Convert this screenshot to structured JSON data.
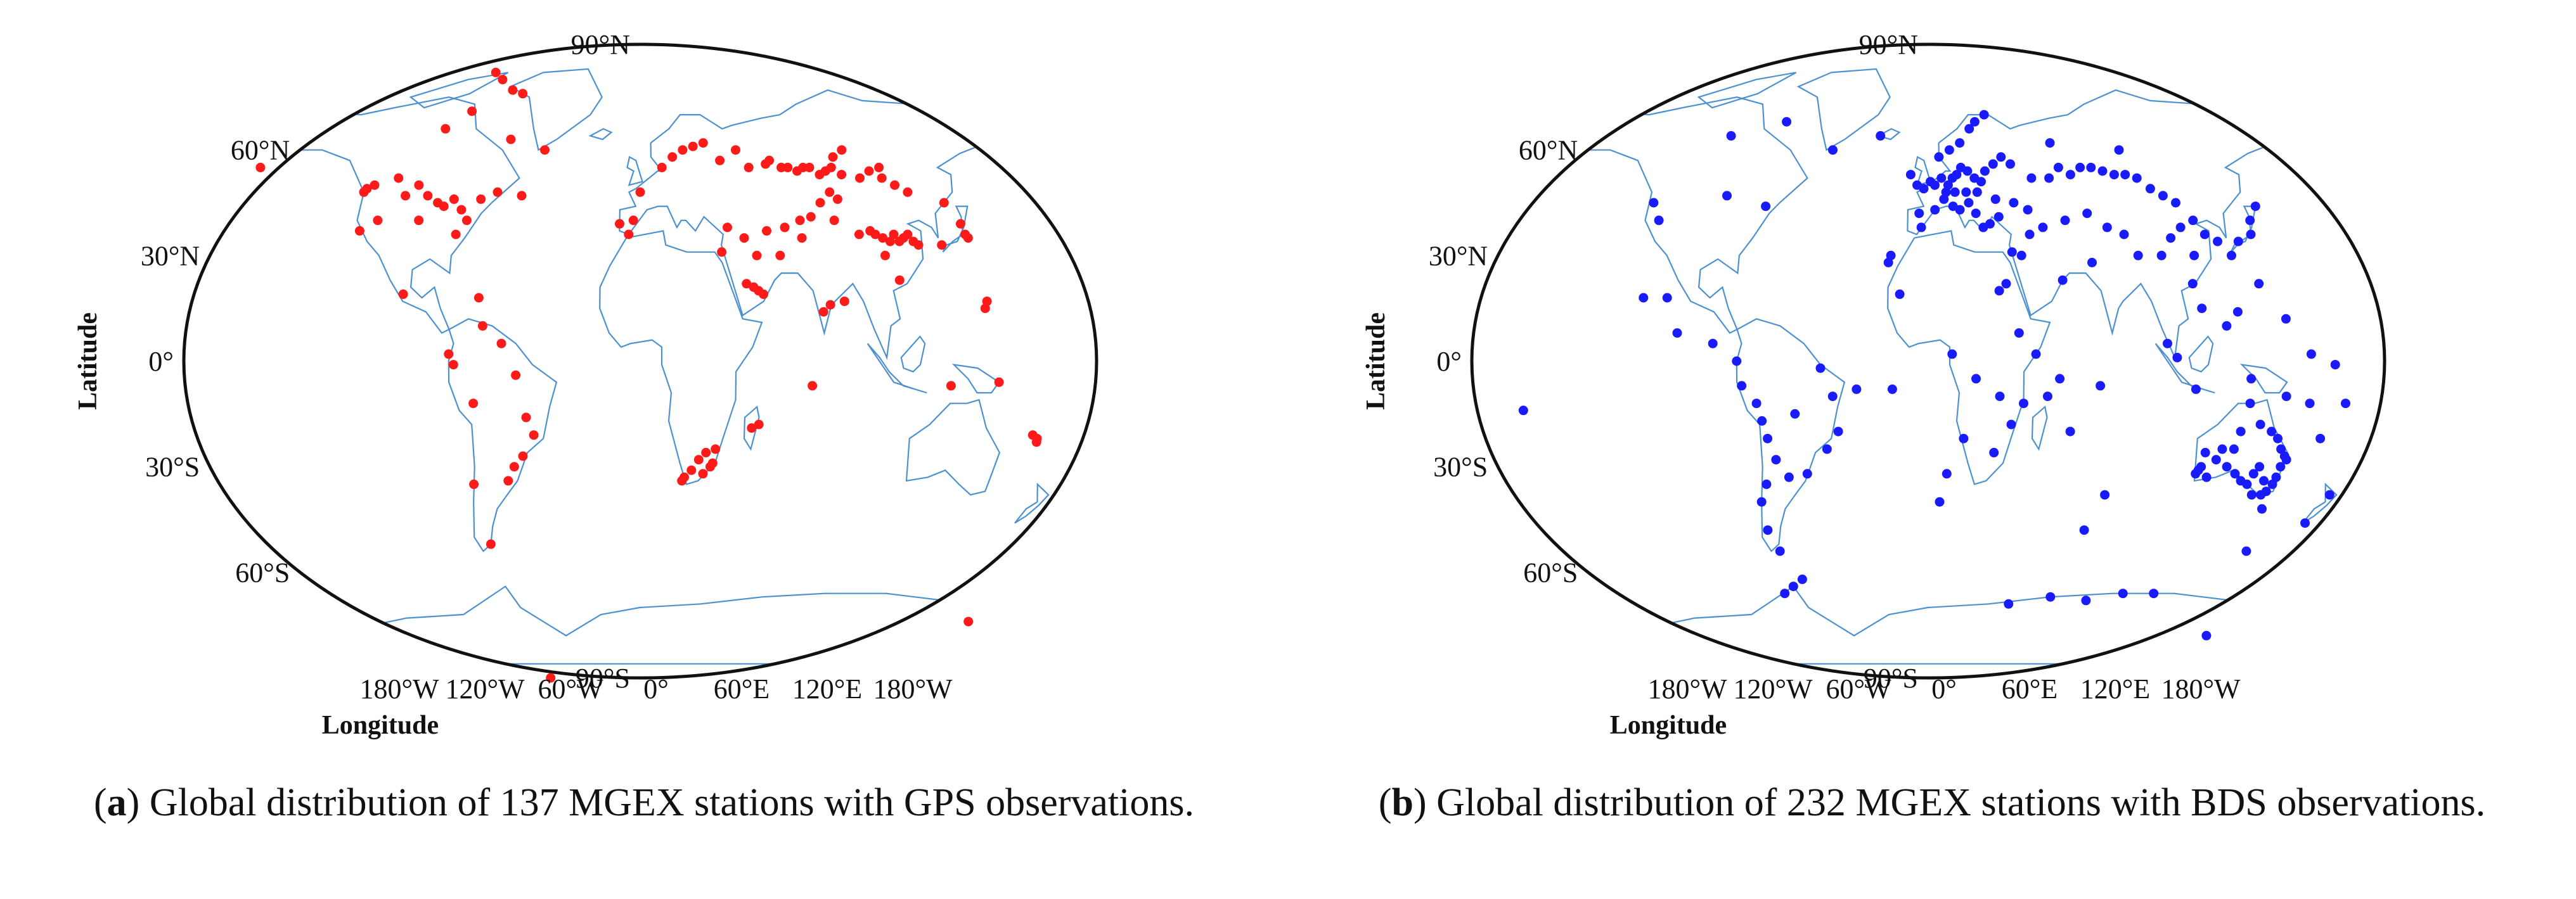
{
  "panels": [
    {
      "id": "a",
      "caption": {
        "letter": "a",
        "prefix": "(",
        "close": ")",
        "text": " Global distribution of 137 MGEX stations with GPS observations."
      },
      "marker_color": "#ff1a1a",
      "xlabel": "Longitude",
      "ylabel": "Latitude",
      "lat_ticks": [
        "90°N",
        "60°N",
        "30°N",
        "0°",
        "30°S",
        "60°S",
        "90°S"
      ],
      "lon_ticks": [
        "180°W",
        "120°W",
        "60°W",
        "0°",
        "60°E",
        "120°E",
        "180°W"
      ],
      "stations": [
        [
          -82,
          82
        ],
        [
          -76,
          80
        ],
        [
          -68,
          77
        ],
        [
          -62,
          76
        ],
        [
          -85,
          71
        ],
        [
          -95,
          66
        ],
        [
          -62,
          63
        ],
        [
          -123,
          49
        ],
        [
          -124,
          48
        ],
        [
          -120,
          50
        ],
        [
          -110,
          52
        ],
        [
          -105,
          47
        ],
        [
          -100,
          50
        ],
        [
          -95,
          47
        ],
        [
          -90,
          45
        ],
        [
          -87,
          44
        ],
        [
          -83,
          46
        ],
        [
          -79,
          43
        ],
        [
          -76,
          40
        ],
        [
          -80,
          36
        ],
        [
          -97,
          40
        ],
        [
          -115,
          40
        ],
        [
          -122,
          37
        ],
        [
          -71,
          46
        ],
        [
          -64,
          48
        ],
        [
          -53,
          47
        ],
        [
          -45,
          60
        ],
        [
          -68,
          18
        ],
        [
          -100,
          19
        ],
        [
          -80,
          2
        ],
        [
          -78,
          -1
        ],
        [
          -66,
          10
        ],
        [
          -58,
          5
        ],
        [
          -52,
          -4
        ],
        [
          -70,
          -12
        ],
        [
          -48,
          -16
        ],
        [
          -45,
          -21
        ],
        [
          -50,
          -27
        ],
        [
          -54,
          -30
        ],
        [
          -57,
          -34
        ],
        [
          -72,
          -35
        ],
        [
          -68,
          -52
        ],
        [
          -68,
          -90
        ],
        [
          -5,
          36
        ],
        [
          -3,
          40
        ],
        [
          -9,
          39
        ],
        [
          0,
          48
        ],
        [
          10,
          55
        ],
        [
          15,
          58
        ],
        [
          20,
          60
        ],
        [
          25,
          61
        ],
        [
          30,
          62
        ],
        [
          37,
          57
        ],
        [
          45,
          60
        ],
        [
          50,
          55
        ],
        [
          58,
          56
        ],
        [
          60,
          57
        ],
        [
          65,
          55
        ],
        [
          68,
          55
        ],
        [
          72,
          54
        ],
        [
          75,
          55
        ],
        [
          78,
          55
        ],
        [
          82,
          53
        ],
        [
          85,
          54
        ],
        [
          88,
          55
        ],
        [
          92,
          53
        ],
        [
          100,
          52
        ],
        [
          105,
          54
        ],
        [
          110,
          52
        ],
        [
          115,
          50
        ],
        [
          120,
          48
        ],
        [
          90,
          58
        ],
        [
          95,
          60
        ],
        [
          110,
          55
        ],
        [
          85,
          48
        ],
        [
          88,
          46
        ],
        [
          80,
          45
        ],
        [
          75,
          41
        ],
        [
          70,
          40
        ],
        [
          63,
          38
        ],
        [
          55,
          37
        ],
        [
          45,
          35
        ],
        [
          50,
          30
        ],
        [
          38,
          38
        ],
        [
          35,
          31
        ],
        [
          60,
          30
        ],
        [
          70,
          35
        ],
        [
          85,
          40
        ],
        [
          95,
          36
        ],
        [
          100,
          37
        ],
        [
          102,
          36
        ],
        [
          105,
          35
        ],
        [
          108,
          34
        ],
        [
          110,
          36
        ],
        [
          112,
          34
        ],
        [
          114,
          35
        ],
        [
          116,
          36
        ],
        [
          118,
          34
        ],
        [
          120,
          33
        ],
        [
          105,
          30
        ],
        [
          110,
          23
        ],
        [
          80,
          16
        ],
        [
          86,
          17
        ],
        [
          77,
          14
        ],
        [
          135,
          45
        ],
        [
          140,
          39
        ],
        [
          141,
          36
        ],
        [
          142,
          35
        ],
        [
          130,
          33
        ],
        [
          145,
          15
        ],
        [
          146,
          17
        ],
        [
          45,
          22
        ],
        [
          50,
          20
        ],
        [
          52,
          19
        ],
        [
          48,
          21
        ],
        [
          18,
          -34
        ],
        [
          19,
          -33
        ],
        [
          22,
          -31
        ],
        [
          25,
          -28
        ],
        [
          28,
          -26
        ],
        [
          32,
          -25
        ],
        [
          30,
          -30
        ],
        [
          27,
          -32
        ],
        [
          31,
          -29
        ],
        [
          47,
          -19
        ],
        [
          50,
          -18
        ],
        [
          72,
          -7
        ],
        [
          130,
          -7
        ],
        [
          150,
          -6
        ],
        [
          168,
          -23
        ],
        [
          166,
          -21
        ],
        [
          168,
          -22
        ],
        [
          170,
          -74
        ],
        [
          -175,
          55
        ]
      ]
    },
    {
      "id": "b",
      "caption": {
        "letter": "b",
        "prefix": "(",
        "close": ")",
        "text": " Global distribution of 232 MGEX stations with BDS observations."
      },
      "marker_color": "#1a1aff",
      "xlabel": "Longitude",
      "ylabel": "Latitude",
      "lat_ticks": [
        "90°N",
        "60°N",
        "30°N",
        "0°",
        "30°S",
        "60°S",
        "90°S"
      ],
      "lon_ticks": [
        "180°W",
        "120°W",
        "60°W",
        "0°",
        "60°E",
        "120°E",
        "180°W"
      ],
      "stations": [
        [
          -95,
          64
        ],
        [
          -70,
          68
        ],
        [
          -122,
          45
        ],
        [
          -118,
          40
        ],
        [
          -90,
          47
        ],
        [
          -72,
          44
        ],
        [
          -45,
          60
        ],
        [
          -23,
          64
        ],
        [
          -17,
          28
        ],
        [
          -16,
          30
        ],
        [
          -12,
          19
        ],
        [
          -120,
          18
        ],
        [
          -110,
          18
        ],
        [
          -105,
          8
        ],
        [
          -90,
          5
        ],
        [
          -80,
          0
        ],
        [
          -78,
          -7
        ],
        [
          -72,
          -12
        ],
        [
          -70,
          -17
        ],
        [
          -68,
          -22
        ],
        [
          -65,
          -28
        ],
        [
          -60,
          -33
        ],
        [
          -70,
          -35
        ],
        [
          -73,
          -40
        ],
        [
          -72,
          -48
        ],
        [
          -68,
          -54
        ],
        [
          -60,
          -62
        ],
        [
          -65,
          -64
        ],
        [
          -70,
          -66
        ],
        [
          -56,
          -15
        ],
        [
          -45,
          -2
        ],
        [
          -40,
          -10
        ],
        [
          -38,
          -20
        ],
        [
          -43,
          -25
        ],
        [
          -52,
          -32
        ],
        [
          -30,
          -8
        ],
        [
          -15,
          -8
        ],
        [
          -8,
          53
        ],
        [
          -5,
          50
        ],
        [
          -2,
          49
        ],
        [
          1,
          51
        ],
        [
          3,
          50
        ],
        [
          6,
          52
        ],
        [
          9,
          50
        ],
        [
          11,
          52
        ],
        [
          13,
          53
        ],
        [
          15,
          55
        ],
        [
          18,
          54
        ],
        [
          21,
          52
        ],
        [
          24,
          51
        ],
        [
          26,
          54
        ],
        [
          30,
          56
        ],
        [
          34,
          58
        ],
        [
          38,
          56
        ],
        [
          5,
          58
        ],
        [
          10,
          60
        ],
        [
          15,
          62
        ],
        [
          20,
          66
        ],
        [
          28,
          70
        ],
        [
          23,
          68
        ],
        [
          7,
          46
        ],
        [
          11,
          44
        ],
        [
          14,
          43
        ],
        [
          18,
          45
        ],
        [
          21,
          42
        ],
        [
          24,
          38
        ],
        [
          27,
          39
        ],
        [
          31,
          41
        ],
        [
          3,
          43
        ],
        [
          -4,
          42
        ],
        [
          -3,
          38
        ],
        [
          8,
          48
        ],
        [
          12,
          48
        ],
        [
          17,
          48
        ],
        [
          22,
          48
        ],
        [
          30,
          46
        ],
        [
          38,
          45
        ],
        [
          44,
          43
        ],
        [
          47,
          52
        ],
        [
          55,
          52
        ],
        [
          60,
          55
        ],
        [
          65,
          53
        ],
        [
          70,
          55
        ],
        [
          75,
          55
        ],
        [
          80,
          54
        ],
        [
          85,
          53
        ],
        [
          90,
          53
        ],
        [
          95,
          52
        ],
        [
          100,
          49
        ],
        [
          105,
          47
        ],
        [
          110,
          45
        ],
        [
          58,
          62
        ],
        [
          90,
          60
        ],
        [
          60,
          40
        ],
        [
          70,
          42
        ],
        [
          78,
          38
        ],
        [
          85,
          36
        ],
        [
          50,
          38
        ],
        [
          44,
          36
        ],
        [
          40,
          30
        ],
        [
          36,
          31
        ],
        [
          33,
          22
        ],
        [
          30,
          20
        ],
        [
          57,
          23
        ],
        [
          70,
          28
        ],
        [
          90,
          30
        ],
        [
          100,
          30
        ],
        [
          105,
          35
        ],
        [
          110,
          38
        ],
        [
          114,
          30
        ],
        [
          116,
          40
        ],
        [
          120,
          36
        ],
        [
          112,
          22
        ],
        [
          125,
          34
        ],
        [
          140,
          36
        ],
        [
          141,
          40
        ],
        [
          145,
          44
        ],
        [
          130,
          30
        ],
        [
          134,
          34
        ],
        [
          100,
          5
        ],
        [
          104,
          1
        ],
        [
          112,
          -8
        ],
        [
          125,
          10
        ],
        [
          115,
          15
        ],
        [
          130,
          14
        ],
        [
          140,
          22
        ],
        [
          160,
          2
        ],
        [
          170,
          -1
        ],
        [
          175,
          -12
        ],
        [
          -170,
          -14
        ],
        [
          166,
          -22
        ],
        [
          150,
          12
        ],
        [
          135,
          -5
        ],
        [
          115,
          -32
        ],
        [
          116,
          -31
        ],
        [
          117,
          -30
        ],
        [
          125,
          -25
        ],
        [
          130,
          -25
        ],
        [
          132,
          -20
        ],
        [
          135,
          -12
        ],
        [
          140,
          -18
        ],
        [
          145,
          -20
        ],
        [
          148,
          -22
        ],
        [
          150,
          -25
        ],
        [
          152,
          -27
        ],
        [
          153,
          -28
        ],
        [
          151,
          -30
        ],
        [
          150,
          -33
        ],
        [
          149,
          -35
        ],
        [
          147,
          -37
        ],
        [
          145,
          -38
        ],
        [
          141,
          -38
        ],
        [
          138,
          -35
        ],
        [
          135,
          -34
        ],
        [
          132,
          -32
        ],
        [
          128,
          -30
        ],
        [
          120,
          -33
        ],
        [
          123,
          -28
        ],
        [
          118,
          -26
        ],
        [
          142,
          -30
        ],
        [
          140,
          -32
        ],
        [
          145,
          -34
        ],
        [
          147,
          -42
        ],
        [
          150,
          -10
        ],
        [
          160,
          -12
        ],
        [
          168,
          -46
        ],
        [
          146,
          -54
        ],
        [
          175,
          -38
        ],
        [
          110,
          -66
        ],
        [
          95,
          -66
        ],
        [
          78,
          -68
        ],
        [
          60,
          -67
        ],
        [
          40,
          -69
        ],
        [
          150,
          -78
        ],
        [
          8,
          -32
        ],
        [
          15,
          -22
        ],
        [
          28,
          -26
        ],
        [
          35,
          -18
        ],
        [
          40,
          -12
        ],
        [
          30,
          -10
        ],
        [
          20,
          -5
        ],
        [
          10,
          2
        ],
        [
          38,
          8
        ],
        [
          45,
          2
        ],
        [
          55,
          -5
        ],
        [
          60,
          -20
        ],
        [
          50,
          -10
        ],
        [
          72,
          -7
        ],
        [
          77,
          -38
        ],
        [
          70,
          -48
        ],
        [
          5,
          -40
        ]
      ]
    }
  ]
}
